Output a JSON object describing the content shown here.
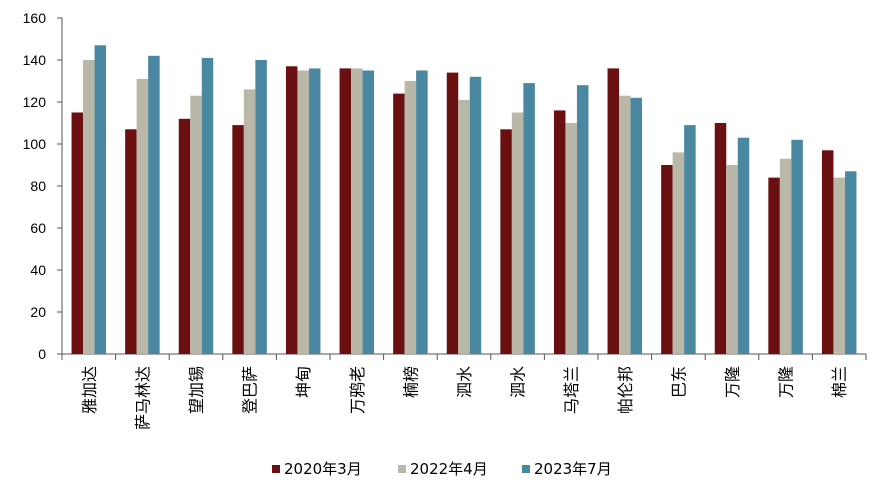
{
  "chart_data": {
    "type": "bar",
    "categories": [
      "雅加达",
      "萨马林达",
      "望加锡",
      "登巴萨",
      "坤甸",
      "万鸦老",
      "楠榜",
      "泗水",
      "泗水",
      "马塔兰",
      "帕伦邦",
      "巴东",
      "万隆",
      "万隆",
      "棉兰"
    ],
    "series": [
      {
        "name": "2020年3月",
        "color": "#6b1010",
        "values": [
          115,
          107,
          112,
          109,
          137,
          136,
          124,
          134,
          107,
          116,
          136,
          90,
          110,
          84,
          97
        ]
      },
      {
        "name": "2022年4月",
        "color": "#b9b8a8",
        "values": [
          140,
          131,
          123,
          126,
          135,
          136,
          130,
          121,
          115,
          110,
          123,
          96,
          90,
          93,
          84
        ]
      },
      {
        "name": "2023年7月",
        "color": "#4a87a1",
        "values": [
          147,
          142,
          141,
          140,
          136,
          135,
          135,
          132,
          129,
          128,
          122,
          109,
          103,
          102,
          87
        ]
      }
    ],
    "ylim": [
      0,
      160
    ],
    "yticks": [
      "0",
      "20",
      "40",
      "60",
      "80",
      "100",
      "120",
      "140",
      "160"
    ],
    "xlabel": "",
    "ylabel": "",
    "legend_position": "bottom",
    "grid": false
  }
}
